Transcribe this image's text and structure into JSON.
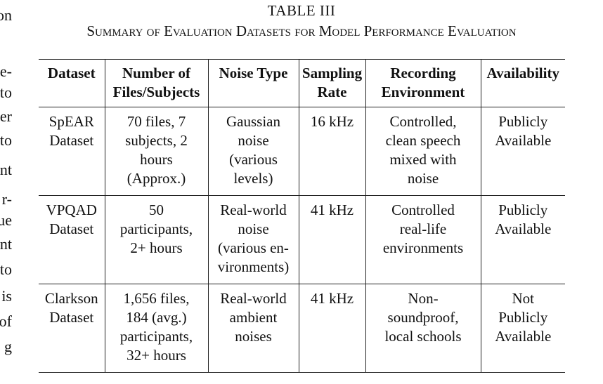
{
  "left_margin_text": [
    "on",
    "",
    "e-",
    "to",
    "er",
    "to",
    "nt",
    "r-",
    "ue",
    "nt",
    "to",
    "is",
    "of",
    "g"
  ],
  "table": {
    "label": "TABLE III",
    "caption": "Summary of Evaluation Datasets for Model Performance Evaluation",
    "headers": [
      [
        "Dataset"
      ],
      [
        "Number of",
        "Files/Subjects"
      ],
      [
        "Noise Type"
      ],
      [
        "Sampling",
        "Rate"
      ],
      [
        "Recording",
        "Environment"
      ],
      [
        "Availability"
      ]
    ],
    "rows": [
      [
        [
          "SpEAR",
          "Dataset"
        ],
        [
          "70 files, 7",
          "subjects, 2",
          "hours",
          "(Approx.)"
        ],
        [
          "Gaussian",
          "noise",
          "(various",
          "levels)"
        ],
        [
          "16 kHz"
        ],
        [
          "Controlled,",
          "clean speech",
          "mixed with",
          "noise"
        ],
        [
          "Publicly",
          "Available"
        ]
      ],
      [
        [
          "VPQAD",
          "Dataset"
        ],
        [
          "50",
          "participants,",
          "2+ hours"
        ],
        [
          "Real-world",
          "noise",
          "(various en-",
          "vironments)"
        ],
        [
          "41 kHz"
        ],
        [
          "Controlled",
          "real-life",
          "environments"
        ],
        [
          "Publicly",
          "Available"
        ]
      ],
      [
        [
          "Clarkson",
          "Dataset"
        ],
        [
          "1,656 files,",
          "184 (avg.)",
          "participants,",
          "32+ hours"
        ],
        [
          "Real-world",
          "ambient",
          "noises"
        ],
        [
          "41 kHz"
        ],
        [
          "Non-",
          "soundproof,",
          "local schools"
        ],
        [
          "Not",
          "Publicly",
          "Available"
        ]
      ]
    ]
  }
}
